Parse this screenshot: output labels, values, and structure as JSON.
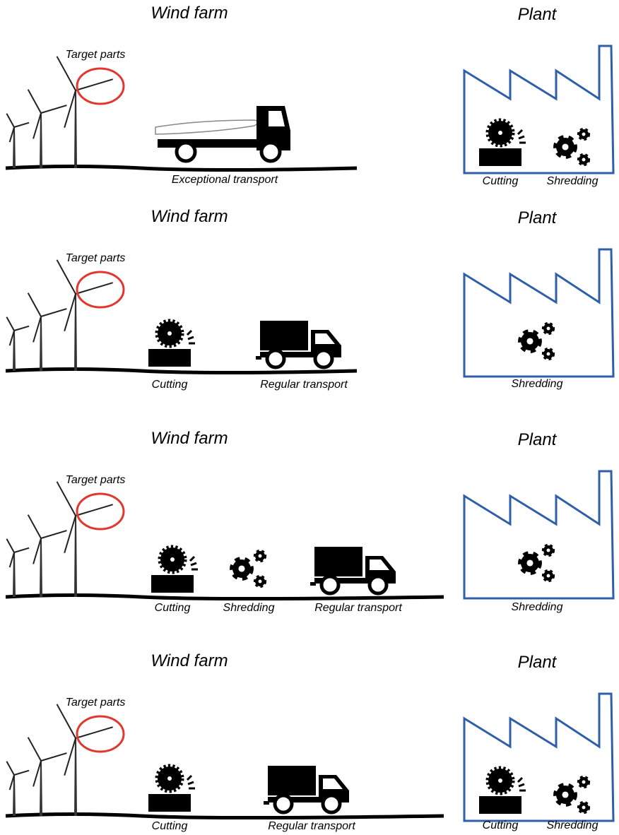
{
  "scenarios": [
    {
      "site_title": "Wind farm",
      "target_label": "Target parts",
      "site_steps": [
        "Exceptional transport"
      ],
      "plant_title": "Plant",
      "plant_steps": [
        "Cutting",
        "Shredding"
      ]
    },
    {
      "site_title": "Wind farm",
      "target_label": "Target parts",
      "site_steps": [
        "Cutting",
        "Regular transport"
      ],
      "plant_title": "Plant",
      "plant_steps": [
        "Shredding"
      ]
    },
    {
      "site_title": "Wind farm",
      "target_label": "Target parts",
      "site_steps": [
        "Cutting",
        "Shredding",
        "Regular transport"
      ],
      "plant_title": "Plant",
      "plant_steps": [
        "Shredding"
      ]
    },
    {
      "site_title": "Wind farm",
      "target_label": "Target parts",
      "site_steps": [
        "Cutting",
        "Regular transport"
      ],
      "plant_title": "Plant",
      "plant_steps": [
        "Cutting",
        "Shredding"
      ]
    }
  ]
}
